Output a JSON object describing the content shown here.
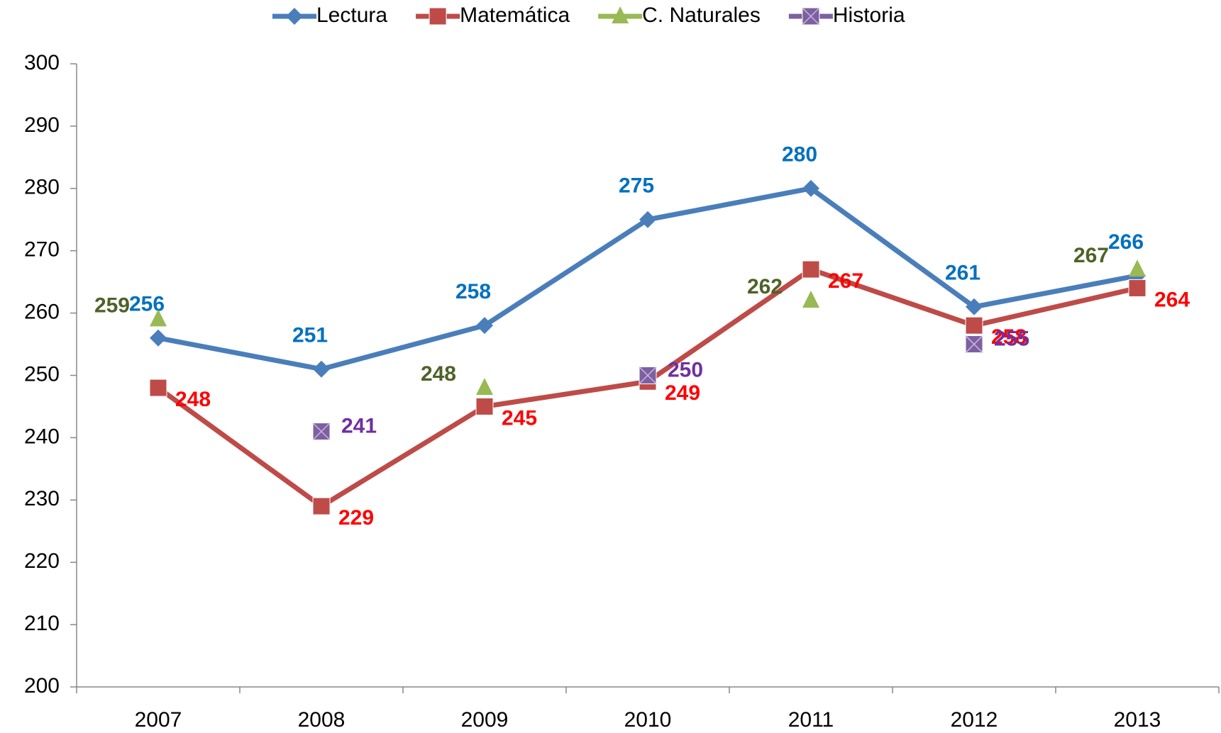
{
  "chart_data": {
    "type": "line",
    "categories": [
      "2007",
      "2008",
      "2009",
      "2010",
      "2011",
      "2012",
      "2013"
    ],
    "series": [
      {
        "name": "Lectura",
        "color": "#4a7ebb",
        "label_color": "#0070c0",
        "marker": "diamond",
        "values": [
          256,
          251,
          258,
          275,
          280,
          261,
          266
        ]
      },
      {
        "name": "Matemática",
        "color": "#be4b48",
        "label_color": "#ff0000",
        "marker": "square",
        "values": [
          248,
          229,
          245,
          249,
          267,
          258,
          264
        ]
      },
      {
        "name": "C. Naturales",
        "color": "#98b954",
        "label_color": "#4f6228",
        "marker": "triangle",
        "values": [
          259,
          null,
          248,
          null,
          262,
          null,
          267
        ]
      },
      {
        "name": "Historia",
        "color": "#7d60a0",
        "label_color": "#7030a0",
        "marker": "xsquare",
        "values": [
          null,
          241,
          null,
          250,
          null,
          255,
          null
        ]
      }
    ],
    "ylim": [
      200,
      300
    ],
    "yticks": [
      200,
      210,
      220,
      230,
      240,
      250,
      260,
      270,
      280,
      290,
      300
    ],
    "legend": "top",
    "grid": false
  }
}
